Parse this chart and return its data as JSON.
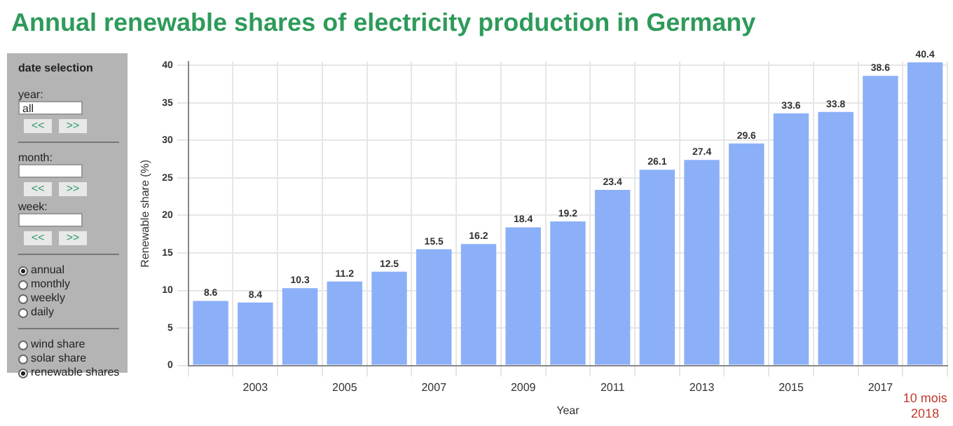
{
  "chart_data": [
    {
      "type": "other",
      "annotations": [
        "date selection",
        "year:",
        "all",
        "<<",
        ">>",
        "month:",
        "<<",
        ">>",
        "week:",
        "<<",
        ">>",
        "annual",
        "monthly",
        "weekly",
        "daily",
        "wind share",
        "solar share",
        "renewable shares"
      ]
    },
    {
      "type": "bar",
      "title": "Annual renewable shares of electricity production in Germany",
      "xlabel": "Year",
      "ylabel": "Renewable share (%)",
      "categories": [
        null,
        "2003",
        null,
        "2005",
        null,
        "2007",
        null,
        "2009",
        null,
        "2011",
        null,
        "2013",
        null,
        "2015",
        null,
        "2017",
        null
      ],
      "values": [
        8.6,
        8.4,
        10.3,
        11.2,
        12.5,
        15.5,
        16.2,
        18.4,
        19.2,
        23.4,
        26.1,
        27.4,
        29.6,
        33.6,
        33.8,
        38.6,
        40.4
      ],
      "color": "#8cb0f8",
      "ylim": [
        0,
        40.5
      ],
      "yticks": [
        0,
        5,
        10,
        15,
        20,
        25,
        30,
        35,
        40
      ],
      "grid": true,
      "data_labels": true,
      "annotations": [
        "10 mois 2018"
      ]
    }
  ]
}
